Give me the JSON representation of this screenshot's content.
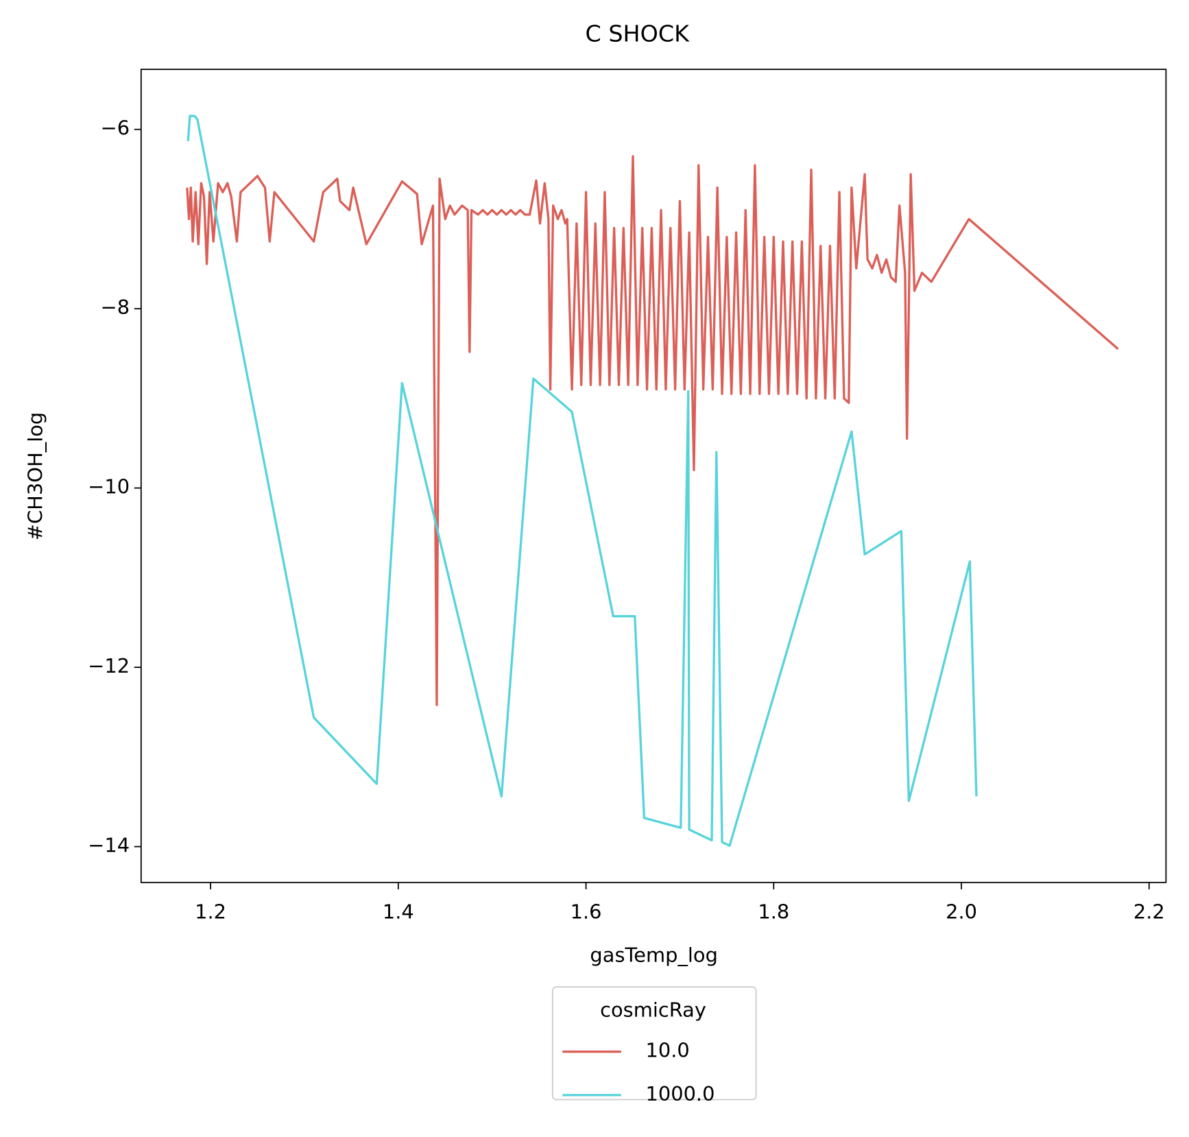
{
  "chart_data": {
    "type": "line",
    "title": "C SHOCK",
    "x_label": "gasTemp_log",
    "y_label": "#CH3OH_log",
    "xlim": [
      1.126,
      2.218
    ],
    "ylim": [
      -14.4,
      -5.33
    ],
    "xticks": [
      1.2,
      1.4,
      1.6,
      1.8,
      {
        "value": 2.0,
        "label": "2.0"
      },
      2.2
    ],
    "yticks": [
      {
        "value": -6,
        "label": "−6"
      },
      {
        "value": -8,
        "label": "−8"
      },
      {
        "value": -10,
        "label": "−10"
      },
      {
        "value": -12,
        "label": "−12"
      },
      {
        "value": -14,
        "label": "−14"
      }
    ],
    "legend_title": "cosmicRay",
    "legend_position": "below",
    "series": [
      {
        "name": "10.0",
        "color": "#db5f57",
        "x": [
          1.175,
          1.177,
          1.179,
          1.181,
          1.184,
          1.187,
          1.19,
          1.193,
          1.196,
          1.199,
          1.203,
          1.208,
          1.213,
          1.218,
          1.222,
          1.228,
          1.232,
          1.25,
          1.258,
          1.263,
          1.268,
          1.31,
          1.32,
          1.335,
          1.338,
          1.348,
          1.352,
          1.366,
          1.404,
          1.42,
          1.425,
          1.437,
          1.441,
          1.444,
          1.45,
          1.455,
          1.46,
          1.468,
          1.474,
          1.476,
          1.478,
          1.485,
          1.49,
          1.495,
          1.5,
          1.505,
          1.51,
          1.515,
          1.52,
          1.525,
          1.53,
          1.535,
          1.54,
          1.547,
          1.551,
          1.556,
          1.56,
          1.562,
          1.565,
          1.57,
          1.574,
          1.578,
          1.58,
          1.585,
          1.59,
          1.595,
          1.6,
          1.605,
          1.61,
          1.615,
          1.62,
          1.625,
          1.63,
          1.635,
          1.64,
          1.645,
          1.65,
          1.655,
          1.66,
          1.665,
          1.67,
          1.675,
          1.68,
          1.685,
          1.69,
          1.695,
          1.7,
          1.705,
          1.71,
          1.715,
          1.72,
          1.725,
          1.73,
          1.735,
          1.74,
          1.745,
          1.75,
          1.755,
          1.76,
          1.765,
          1.77,
          1.775,
          1.78,
          1.785,
          1.79,
          1.795,
          1.8,
          1.805,
          1.81,
          1.815,
          1.82,
          1.825,
          1.83,
          1.835,
          1.84,
          1.845,
          1.85,
          1.855,
          1.86,
          1.865,
          1.87,
          1.875,
          1.88,
          1.883,
          1.888,
          1.897,
          1.9,
          1.905,
          1.91,
          1.915,
          1.92,
          1.925,
          1.93,
          1.934,
          1.94,
          1.942,
          1.946,
          1.95,
          1.958,
          1.968,
          2.008,
          2.167
        ],
        "values": [
          -6.65,
          -7.0,
          -6.65,
          -7.25,
          -6.7,
          -7.28,
          -6.6,
          -6.75,
          -7.5,
          -6.7,
          -7.25,
          -6.6,
          -6.7,
          -6.6,
          -6.75,
          -7.25,
          -6.7,
          -6.52,
          -6.65,
          -7.25,
          -6.7,
          -7.25,
          -6.7,
          -6.55,
          -6.8,
          -6.9,
          -6.65,
          -7.28,
          -6.58,
          -6.72,
          -7.28,
          -6.85,
          -12.42,
          -6.55,
          -7.0,
          -6.85,
          -6.95,
          -6.85,
          -6.9,
          -8.48,
          -6.9,
          -6.95,
          -6.9,
          -6.95,
          -6.9,
          -6.95,
          -6.9,
          -6.95,
          -6.9,
          -6.95,
          -6.9,
          -6.95,
          -6.95,
          -6.57,
          -7.05,
          -6.6,
          -7.0,
          -8.9,
          -6.85,
          -7.0,
          -6.9,
          -7.05,
          -7.0,
          -8.9,
          -7.05,
          -8.85,
          -6.7,
          -8.85,
          -7.05,
          -8.85,
          -6.7,
          -8.85,
          -7.1,
          -8.85,
          -7.1,
          -8.85,
          -6.3,
          -8.85,
          -7.1,
          -8.9,
          -7.1,
          -8.9,
          -6.9,
          -8.9,
          -7.1,
          -8.9,
          -6.8,
          -8.9,
          -7.15,
          -9.8,
          -6.4,
          -8.9,
          -7.2,
          -8.9,
          -6.65,
          -8.95,
          -7.2,
          -8.95,
          -7.15,
          -8.95,
          -6.9,
          -8.95,
          -6.4,
          -8.95,
          -7.2,
          -8.95,
          -7.2,
          -8.95,
          -7.25,
          -8.95,
          -7.25,
          -8.95,
          -7.25,
          -9.0,
          -6.45,
          -9.0,
          -7.3,
          -9.0,
          -7.3,
          -9.0,
          -6.7,
          -9.0,
          -9.05,
          -6.65,
          -7.55,
          -6.5,
          -7.45,
          -7.55,
          -7.4,
          -7.6,
          -7.45,
          -7.65,
          -7.7,
          -6.85,
          -7.6,
          -9.45,
          -6.5,
          -7.8,
          -7.6,
          -7.7,
          -7.0,
          -8.45
        ]
      },
      {
        "name": "1000.0",
        "color": "#57d3db",
        "x": [
          1.176,
          1.178,
          1.183,
          1.186,
          1.31,
          1.377,
          1.404,
          1.51,
          1.544,
          1.585,
          1.629,
          1.652,
          1.662,
          1.701,
          1.709,
          1.71,
          1.734,
          1.739,
          1.745,
          1.753,
          1.883,
          1.897,
          1.936,
          1.944,
          2.009,
          2.016
        ],
        "values": [
          -6.13,
          -5.85,
          -5.85,
          -5.89,
          -12.56,
          -13.3,
          -8.83,
          -13.44,
          -8.78,
          -9.15,
          -11.43,
          -11.43,
          -13.68,
          -13.79,
          -8.92,
          -13.81,
          -13.93,
          -9.6,
          -13.95,
          -13.99,
          -9.37,
          -10.74,
          -10.48,
          -13.49,
          -10.82,
          -13.44
        ]
      }
    ]
  }
}
